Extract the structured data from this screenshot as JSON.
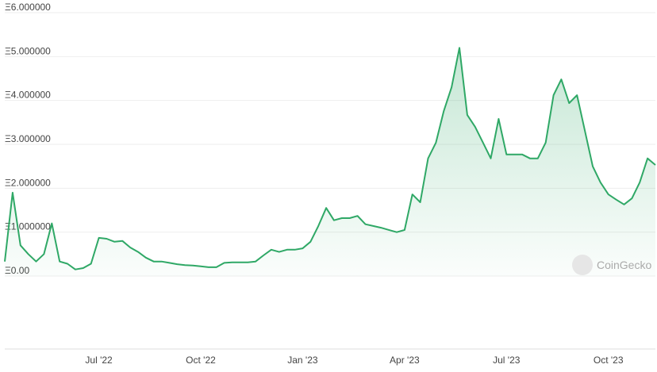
{
  "chart_data": {
    "type": "area",
    "watermark": "CoinGecko",
    "categories": [
      null,
      null,
      null,
      null,
      null,
      null,
      null,
      null,
      null,
      null,
      null,
      null,
      "Jul '22",
      null,
      null,
      null,
      null,
      null,
      null,
      null,
      null,
      null,
      null,
      null,
      null,
      "Oct '22",
      null,
      null,
      null,
      null,
      null,
      null,
      null,
      null,
      null,
      null,
      null,
      null,
      "Jan '23",
      null,
      null,
      null,
      null,
      null,
      null,
      null,
      null,
      null,
      null,
      null,
      null,
      "Apr '23",
      null,
      null,
      null,
      null,
      null,
      null,
      null,
      null,
      null,
      null,
      null,
      null,
      "Jul '23",
      null,
      null,
      null,
      null,
      null,
      null,
      null,
      null,
      null,
      null,
      null,
      null,
      "Oct '23",
      null,
      null,
      null,
      null,
      null,
      null
    ],
    "series": [
      {
        "color": "#2fa866",
        "values": [
          0.33,
          1.9,
          0.7,
          0.5,
          0.33,
          0.5,
          1.2,
          0.33,
          0.28,
          0.15,
          0.18,
          0.28,
          0.87,
          0.85,
          0.78,
          0.8,
          0.65,
          0.55,
          0.42,
          0.33,
          0.33,
          0.3,
          0.27,
          0.25,
          0.24,
          0.22,
          0.2,
          0.2,
          0.3,
          0.31,
          0.31,
          0.31,
          0.33,
          0.47,
          0.6,
          0.55,
          0.6,
          0.6,
          0.63,
          0.78,
          1.14,
          1.55,
          1.27,
          1.32,
          1.32,
          1.37,
          1.18,
          1.14,
          1.1,
          1.05,
          1.0,
          1.05,
          1.86,
          1.68,
          2.68,
          3.04,
          3.76,
          4.3,
          5.2,
          3.67,
          3.4,
          3.04,
          2.68,
          3.58,
          2.77,
          2.77,
          2.77,
          2.68,
          2.68,
          3.04,
          4.12,
          4.48,
          3.94,
          4.12,
          3.31,
          2.5,
          2.13,
          1.86,
          1.74,
          1.63,
          1.77,
          2.13,
          2.68,
          2.53
        ]
      }
    ],
    "ylim": [
      0,
      6
    ],
    "yticks": [
      {
        "value": 0,
        "label": "Ξ0.00"
      },
      {
        "value": 1,
        "label": "Ξ1.000000"
      },
      {
        "value": 2,
        "label": "Ξ2.000000"
      },
      {
        "value": 3,
        "label": "Ξ3.000000"
      },
      {
        "value": 4,
        "label": "Ξ4.000000"
      },
      {
        "value": 5,
        "label": "Ξ5.000000"
      },
      {
        "value": 6,
        "label": "Ξ6.000000"
      }
    ],
    "grid": true
  }
}
